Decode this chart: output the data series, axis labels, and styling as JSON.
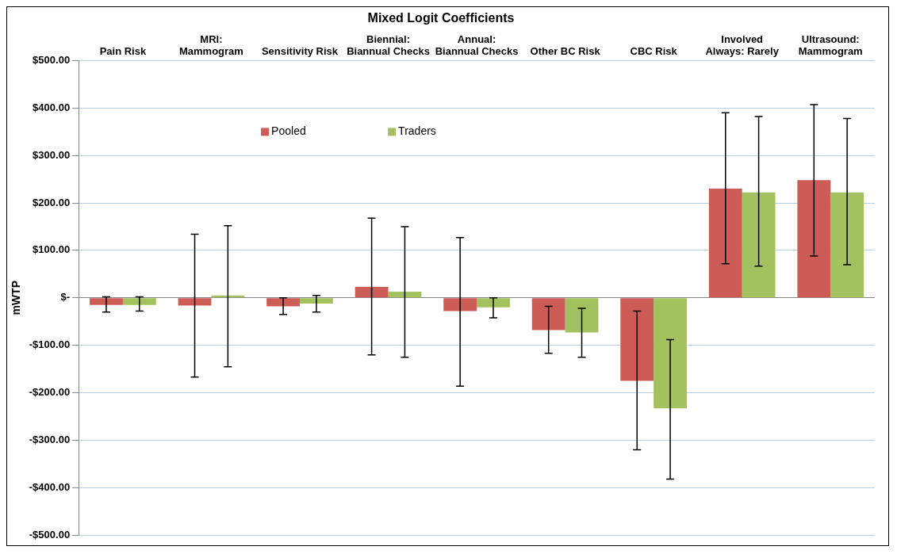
{
  "chart_data": {
    "type": "bar",
    "title": "Mixed Logit Coefficients",
    "ylabel": "mWTP",
    "categories": [
      "Pain Risk",
      "MRI:\nMammogram",
      "Sensitivity Risk",
      "Biennial:\nBiannual Checks",
      "Annual:\nBiannual Checks",
      "Other BC Risk",
      "CBC Risk",
      "Involved\nAlways: Rarely",
      "Ultrasound:\nMammogram"
    ],
    "series": [
      {
        "name": "Pooled",
        "color": "#cd5c57",
        "values": [
          -15,
          -16,
          -18,
          23,
          -28,
          -68,
          -175,
          230,
          248
        ],
        "errors": [
          [
            -30,
            2
          ],
          [
            -167,
            134
          ],
          [
            -35,
            0
          ],
          [
            -120,
            168
          ],
          [
            -186,
            127
          ],
          [
            -117,
            -18
          ],
          [
            -320,
            -28
          ],
          [
            72,
            390
          ],
          [
            88,
            407
          ]
        ]
      },
      {
        "name": "Traders",
        "color": "#a3c25f",
        "values": [
          -15,
          5,
          -12,
          13,
          -20,
          -73,
          -233,
          222,
          222
        ],
        "errors": [
          [
            -28,
            2
          ],
          [
            -145,
            152
          ],
          [
            -30,
            5
          ],
          [
            -125,
            150
          ],
          [
            -42,
            0
          ],
          [
            -125,
            -22
          ],
          [
            -382,
            -88
          ],
          [
            67,
            382
          ],
          [
            70,
            378
          ]
        ]
      }
    ],
    "ylim": [
      -500,
      500
    ],
    "yticks": [
      {
        "value": -500,
        "label": "-$500.00"
      },
      {
        "value": -400,
        "label": "-$400.00"
      },
      {
        "value": -300,
        "label": "-$300.00"
      },
      {
        "value": -200,
        "label": "-$200.00"
      },
      {
        "value": -100,
        "label": "-$100.00"
      },
      {
        "value": 0,
        "label": "$-"
      },
      {
        "value": 100,
        "label": "$100.00"
      },
      {
        "value": 200,
        "label": "$200.00"
      },
      {
        "value": 300,
        "label": "$300.00"
      },
      {
        "value": 400,
        "label": "$400.00"
      },
      {
        "value": 500,
        "label": "$500.00"
      }
    ],
    "grid": "y",
    "legend": "top left"
  }
}
